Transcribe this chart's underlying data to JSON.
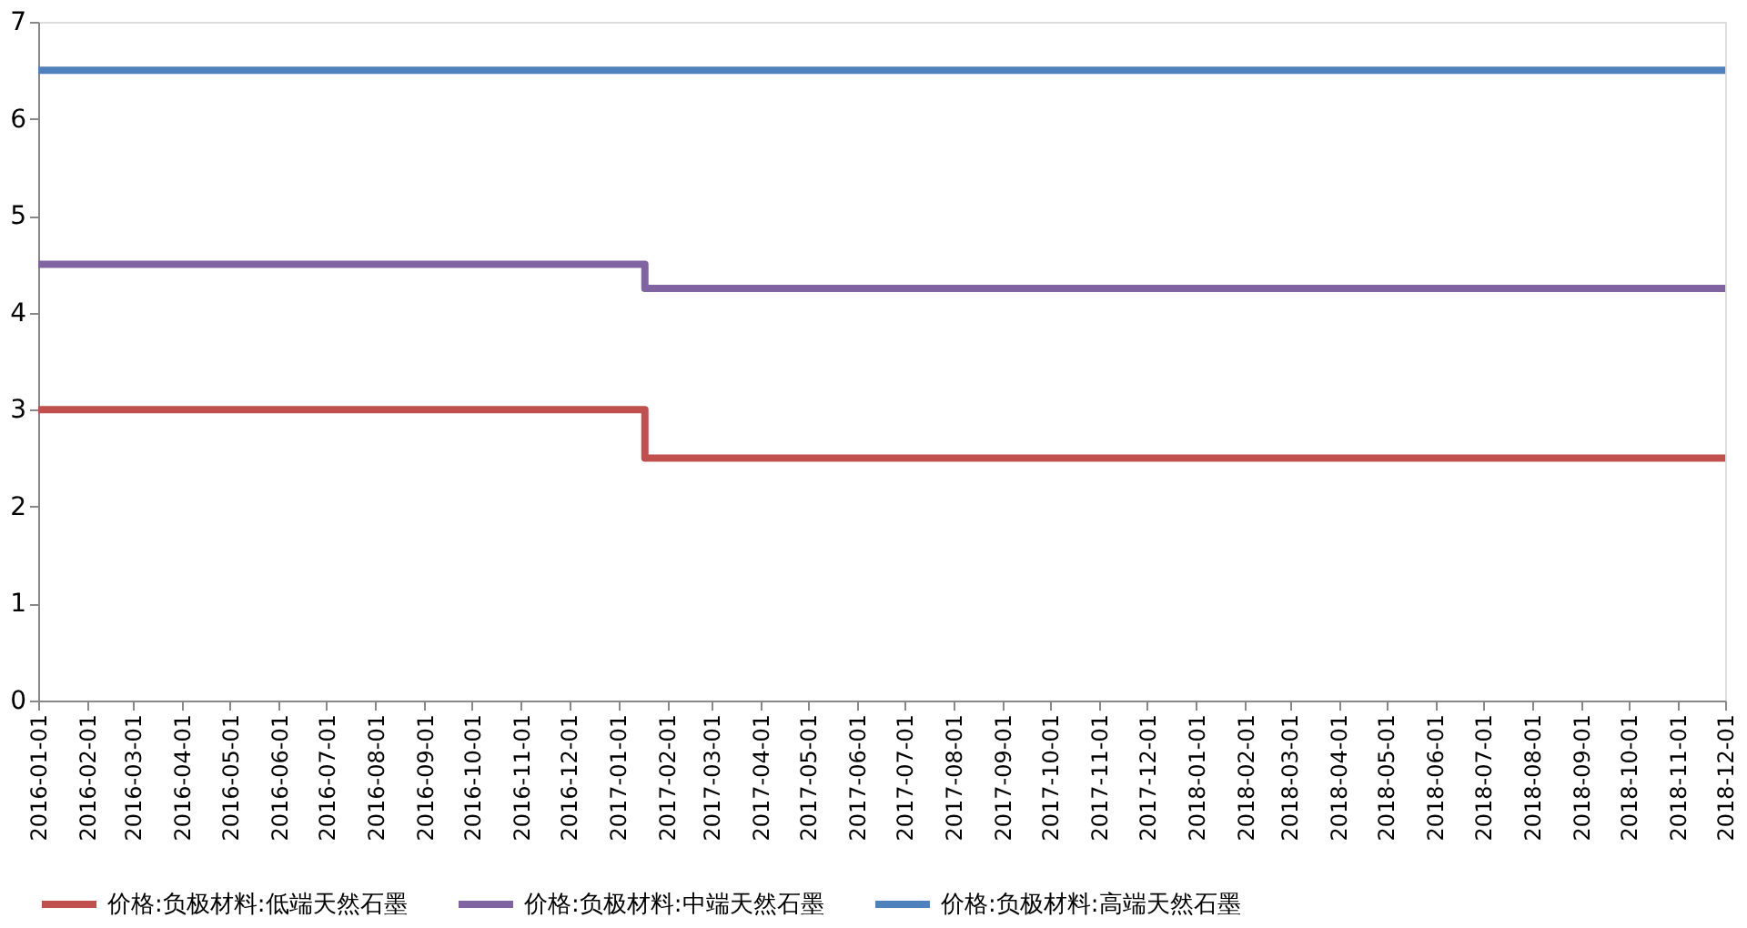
{
  "chart_data": {
    "type": "step",
    "x": [
      "2016-01-01",
      "2017-01-18",
      "2018-12-01"
    ],
    "series": [
      {
        "name": "价格:负极材料:低端天然石墨",
        "color": "#c0504d",
        "values": [
          3,
          2.5,
          2.5
        ]
      },
      {
        "name": "价格:负极材料:中端天然石墨",
        "color": "#8064a2",
        "values": [
          4.5,
          4.25,
          4.25
        ]
      },
      {
        "name": "价格:负极材料:高端天然石墨",
        "color": "#4f81bd",
        "values": [
          6.5,
          6.5,
          6.5
        ]
      }
    ],
    "xlim": [
      "2016-01-01",
      "2018-12-01"
    ],
    "xticks": [
      "2016-01-01",
      "2016-02-01",
      "2016-03-01",
      "2016-04-01",
      "2016-05-01",
      "2016-06-01",
      "2016-07-01",
      "2016-08-01",
      "2016-09-01",
      "2016-10-01",
      "2016-11-01",
      "2016-12-01",
      "2017-01-01",
      "2017-02-01",
      "2017-03-01",
      "2017-04-01",
      "2017-05-01",
      "2017-06-01",
      "2017-07-01",
      "2017-08-01",
      "2017-09-01",
      "2017-10-01",
      "2017-11-01",
      "2017-12-01",
      "2018-01-01",
      "2018-02-01",
      "2018-03-01",
      "2018-04-01",
      "2018-05-01",
      "2018-06-01",
      "2018-07-01",
      "2018-08-01",
      "2018-09-01",
      "2018-10-01",
      "2018-11-01",
      "2018-12-01"
    ],
    "ylim": [
      0,
      7
    ],
    "yticks": [
      0,
      1,
      2,
      3,
      4,
      5,
      6,
      7
    ],
    "grid": false,
    "legend": "bottom",
    "marker": "none",
    "line_style": "solid"
  }
}
